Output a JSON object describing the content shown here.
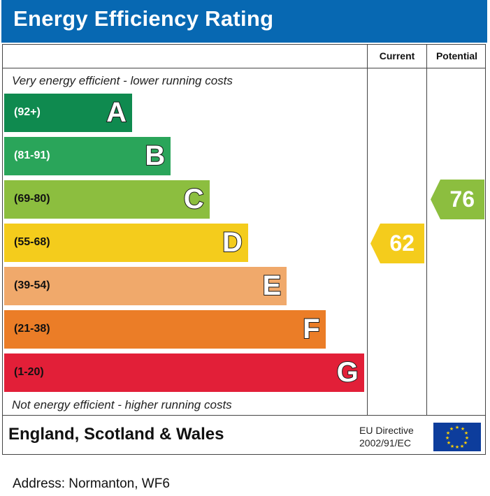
{
  "title": "Energy Efficiency Rating",
  "columns": {
    "current": "Current",
    "potential": "Potential"
  },
  "captions": {
    "top": "Very energy efficient - lower running costs",
    "bottom": "Not energy efficient - higher running costs"
  },
  "footer": {
    "region": "England, Scotland & Wales",
    "directive_line1": "EU Directive",
    "directive_line2": "2002/91/EC",
    "flag_icon": "eu-flag-icon"
  },
  "address": "Address: Normanton, WF6",
  "chart_data": {
    "type": "bar",
    "categories": [
      "A",
      "B",
      "C",
      "D",
      "E",
      "F",
      "G"
    ],
    "ranges": [
      "(92+)",
      "(81-91)",
      "(69-80)",
      "(55-68)",
      "(39-54)",
      "(21-38)",
      "(1-20)"
    ],
    "colors": [
      "#0f8a4f",
      "#2aa55a",
      "#8cbe3f",
      "#f4cc1c",
      "#f0a96b",
      "#eb7d27",
      "#e21f38"
    ],
    "range_text_colors": [
      "#ffffff",
      "#ffffff",
      "#111111",
      "#111111",
      "#111111",
      "#111111",
      "#111111"
    ],
    "current": {
      "value": 62,
      "band": "D",
      "color": "#f4cc1c"
    },
    "potential": {
      "value": 76,
      "band": "C",
      "color": "#8cbe3f"
    }
  }
}
